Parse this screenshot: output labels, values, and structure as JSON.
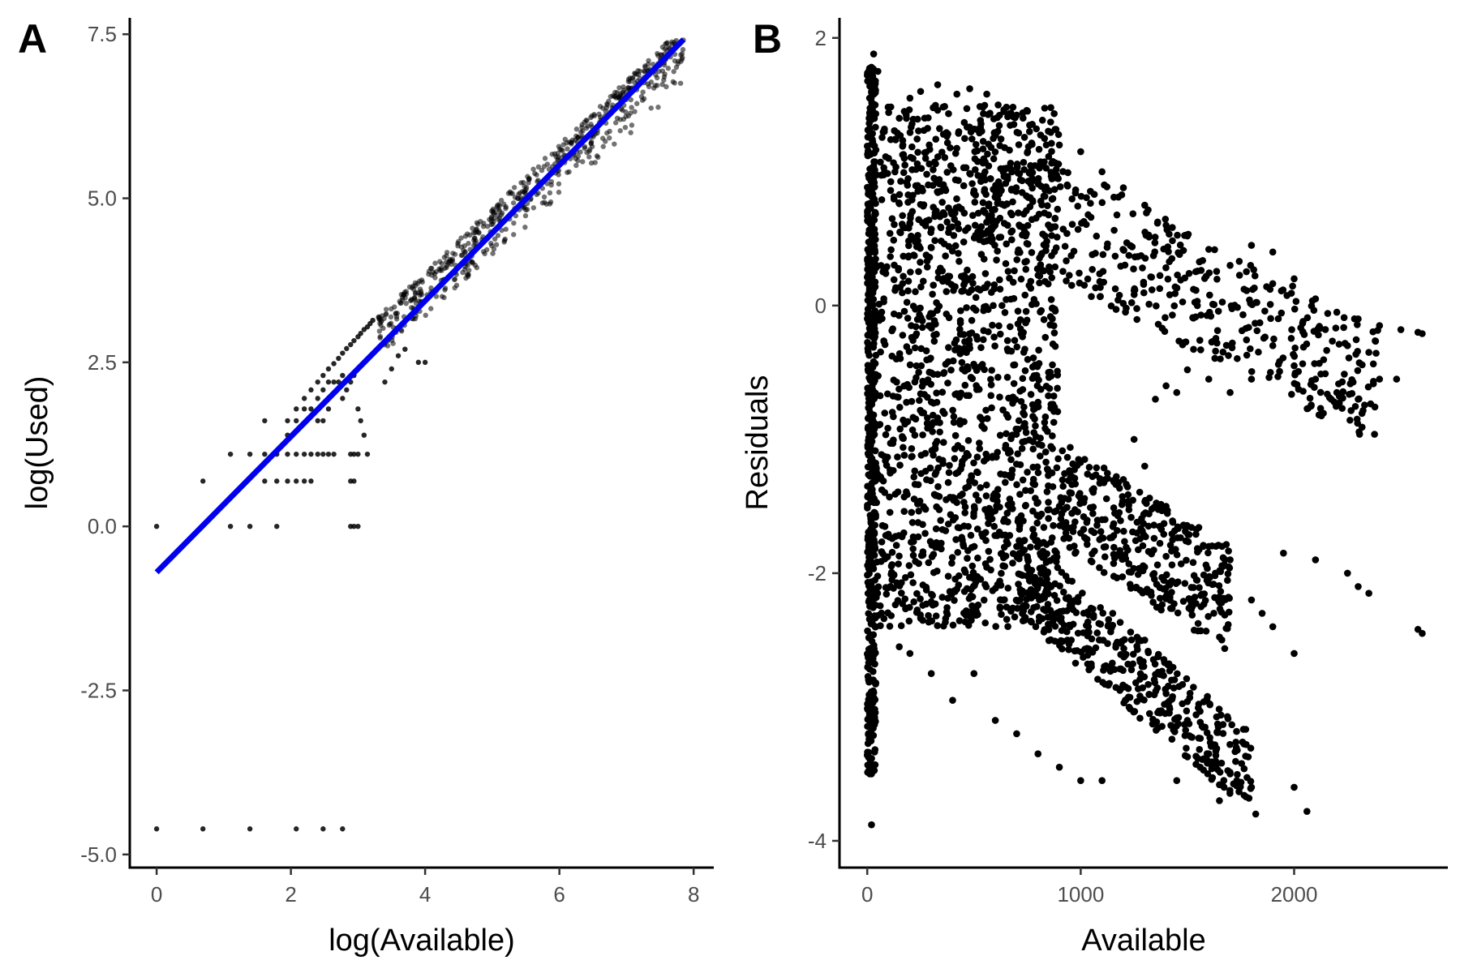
{
  "chart_data": [
    {
      "panel": "A",
      "type": "scatter",
      "xlabel": "log(Available)",
      "ylabel": "log(Used)",
      "xlim": [
        -0.4,
        8.3
      ],
      "ylim": [
        -5.2,
        7.75
      ],
      "xticks": [
        0,
        2,
        4,
        6,
        8
      ],
      "xtick_labels": [
        "0",
        "2",
        "4",
        "6",
        "8"
      ],
      "yticks": [
        -5.0,
        -2.5,
        0.0,
        2.5,
        5.0,
        7.5
      ],
      "ytick_labels": [
        "-5.0",
        "-2.5",
        "0.0",
        "2.5",
        "5.0",
        "7.5"
      ],
      "grid": false,
      "point_color": "#000000",
      "point_opacity": 0.55,
      "fit_line": {
        "x": [
          0,
          7.85
        ],
        "y": [
          -0.7,
          7.42
        ],
        "color": "#0000ee"
      },
      "band_count": 600,
      "points": [
        [
          0,
          0
        ],
        [
          0.69,
          0.69
        ],
        [
          1.1,
          1.1
        ],
        [
          1.1,
          0
        ],
        [
          1.39,
          1.1
        ],
        [
          1.39,
          0
        ],
        [
          1.61,
          1.1
        ],
        [
          1.61,
          1.61
        ],
        [
          1.61,
          0.69
        ],
        [
          1.79,
          0.69
        ],
        [
          1.79,
          1.1
        ],
        [
          1.79,
          0
        ],
        [
          1.95,
          1.1
        ],
        [
          1.95,
          0.69
        ],
        [
          2.08,
          1.1
        ],
        [
          2.08,
          0.69
        ],
        [
          2.2,
          1.1
        ],
        [
          2.2,
          0.69
        ],
        [
          2.3,
          1.1
        ],
        [
          2.3,
          0.69
        ],
        [
          2.4,
          1.1
        ],
        [
          2.48,
          1.1
        ],
        [
          2.56,
          1.1
        ],
        [
          2.64,
          1.1
        ],
        [
          2.3,
          2.08
        ],
        [
          2.4,
          2.2
        ],
        [
          2.48,
          2.3
        ],
        [
          2.56,
          2.4
        ],
        [
          2.3,
          1.79
        ],
        [
          2.4,
          1.95
        ],
        [
          2.48,
          2.08
        ],
        [
          2.56,
          2.2
        ],
        [
          2.2,
          1.95
        ],
        [
          2.2,
          1.79
        ],
        [
          2.08,
          1.61
        ],
        [
          2.08,
          1.79
        ],
        [
          1.95,
          1.39
        ],
        [
          1.95,
          1.61
        ],
        [
          2.64,
          2.48
        ],
        [
          2.71,
          2.56
        ],
        [
          2.77,
          2.64
        ],
        [
          2.83,
          2.71
        ],
        [
          2.89,
          2.77
        ],
        [
          2.94,
          2.83
        ],
        [
          3.0,
          2.89
        ],
        [
          3.04,
          2.94
        ],
        [
          3.09,
          3.0
        ],
        [
          3.14,
          3.04
        ],
        [
          3.18,
          3.09
        ],
        [
          3.22,
          3.14
        ],
        [
          2.77,
          1.95
        ],
        [
          2.83,
          2.08
        ],
        [
          2.89,
          2.2
        ],
        [
          2.94,
          2.3
        ],
        [
          3.0,
          1.79
        ],
        [
          3.04,
          1.61
        ],
        [
          3.09,
          1.39
        ],
        [
          3.14,
          1.1
        ],
        [
          2.94,
          1.1
        ],
        [
          3.0,
          1.1
        ],
        [
          2.89,
          1.1
        ],
        [
          2.89,
          0.69
        ],
        [
          2.94,
          0.69
        ],
        [
          2.89,
          0
        ],
        [
          2.94,
          0
        ],
        [
          3.0,
          0
        ],
        [
          3.4,
          2.2
        ],
        [
          3.5,
          2.4
        ],
        [
          3.6,
          2.6
        ],
        [
          3.7,
          2.7
        ],
        [
          3.9,
          2.5
        ],
        [
          4.0,
          2.5
        ],
        [
          2.64,
          2.2
        ],
        [
          2.71,
          2.2
        ],
        [
          2.77,
          2.3
        ],
        [
          2.4,
          1.61
        ],
        [
          2.48,
          1.61
        ],
        [
          2.56,
          1.79
        ],
        [
          0,
          -4.61
        ],
        [
          0.69,
          -4.61
        ],
        [
          1.39,
          -4.61
        ],
        [
          2.08,
          -4.61
        ],
        [
          2.48,
          -4.61
        ],
        [
          2.77,
          -4.61
        ]
      ]
    },
    {
      "panel": "B",
      "type": "scatter",
      "xlabel": "Available",
      "ylabel": "Residuals",
      "xlim": [
        -130,
        2720
      ],
      "ylim": [
        -4.2,
        2.15
      ],
      "xticks": [
        0,
        1000,
        2000
      ],
      "xtick_labels": [
        "0",
        "1000",
        "2000"
      ],
      "yticks": [
        -4,
        -2,
        0,
        2
      ],
      "ytick_labels": [
        "-4",
        "-2",
        "0",
        "2"
      ],
      "grid": false,
      "point_color": "#000000",
      "points": [
        [
          30,
          1.88
        ],
        [
          50,
          1.75
        ],
        [
          20,
          1.6
        ],
        [
          80,
          1.3
        ],
        [
          100,
          1.1
        ],
        [
          150,
          1.4
        ],
        [
          200,
          1.55
        ],
        [
          250,
          1.6
        ],
        [
          330,
          1.65
        ],
        [
          420,
          1.58
        ],
        [
          480,
          1.62
        ],
        [
          560,
          1.58
        ],
        [
          640,
          1.45
        ],
        [
          760,
          1.3
        ],
        [
          900,
          1.2
        ],
        [
          1000,
          1.15
        ],
        [
          1100,
          1.0
        ],
        [
          1200,
          0.88
        ],
        [
          1300,
          0.75
        ],
        [
          1400,
          0.6
        ],
        [
          1500,
          0.52
        ],
        [
          1600,
          0.42
        ],
        [
          1700,
          0.3
        ],
        [
          1800,
          0.45
        ],
        [
          1900,
          0.4
        ],
        [
          2000,
          0.2
        ],
        [
          2100,
          0.05
        ],
        [
          2200,
          -0.05
        ],
        [
          2300,
          -0.1
        ],
        [
          2400,
          -0.15
        ],
        [
          2500,
          -0.18
        ],
        [
          2580,
          -0.2
        ],
        [
          2600,
          -0.21
        ],
        [
          1900,
          -0.3
        ],
        [
          2000,
          -0.45
        ],
        [
          2100,
          -0.55
        ],
        [
          2200,
          -0.65
        ],
        [
          2300,
          -0.7
        ],
        [
          2400,
          -0.55
        ],
        [
          2480,
          -0.55
        ],
        [
          2350,
          -0.35
        ],
        [
          2250,
          -0.3
        ],
        [
          1800,
          -0.55
        ],
        [
          1700,
          -0.65
        ],
        [
          1600,
          -0.55
        ],
        [
          1500,
          -0.48
        ],
        [
          1400,
          -0.6
        ],
        [
          1350,
          -0.7
        ],
        [
          1450,
          -0.65
        ],
        [
          1400,
          -1.5
        ],
        [
          1500,
          -1.65
        ],
        [
          1600,
          -1.8
        ],
        [
          1700,
          -1.9
        ],
        [
          1800,
          -2.2
        ],
        [
          1900,
          -2.4
        ],
        [
          2000,
          -2.6
        ],
        [
          2100,
          -1.9
        ],
        [
          1950,
          -1.85
        ],
        [
          2250,
          -2.0
        ],
        [
          2300,
          -2.1
        ],
        [
          2350,
          -2.15
        ],
        [
          2600,
          -2.45
        ],
        [
          2580,
          -2.42
        ],
        [
          1850,
          -2.3
        ],
        [
          1300,
          -2.5
        ],
        [
          1400,
          -2.9
        ],
        [
          1500,
          -3.1
        ],
        [
          1600,
          -3.35
        ],
        [
          1700,
          -3.5
        ],
        [
          1800,
          -3.6
        ],
        [
          1820,
          -3.8
        ],
        [
          2000,
          -3.6
        ],
        [
          2060,
          -3.78
        ],
        [
          1650,
          -3.7
        ],
        [
          1560,
          -3.45
        ],
        [
          1450,
          -3.55
        ],
        [
          1000,
          -3.55
        ],
        [
          1100,
          -3.55
        ],
        [
          900,
          -3.45
        ],
        [
          800,
          -3.35
        ],
        [
          700,
          -3.2
        ],
        [
          600,
          -3.1
        ],
        [
          500,
          -2.75
        ],
        [
          400,
          -2.95
        ],
        [
          300,
          -2.75
        ],
        [
          200,
          -2.6
        ],
        [
          150,
          -2.55
        ],
        [
          20,
          -2.8
        ],
        [
          20,
          -3.2
        ],
        [
          20,
          -3.5
        ],
        [
          20,
          -3.88
        ],
        [
          15,
          -3.4
        ],
        [
          20,
          -2.1
        ],
        [
          40,
          -2.4
        ],
        [
          900,
          -1.5
        ],
        [
          1000,
          -1.7
        ],
        [
          1100,
          -1.6
        ],
        [
          1200,
          -1.3
        ],
        [
          1250,
          -1.0
        ],
        [
          1300,
          -1.2
        ],
        [
          1150,
          -2.3
        ],
        [
          1050,
          -2.7
        ],
        [
          950,
          -2.4
        ],
        [
          850,
          -2.1
        ],
        [
          700,
          -1.8
        ]
      ]
    }
  ]
}
